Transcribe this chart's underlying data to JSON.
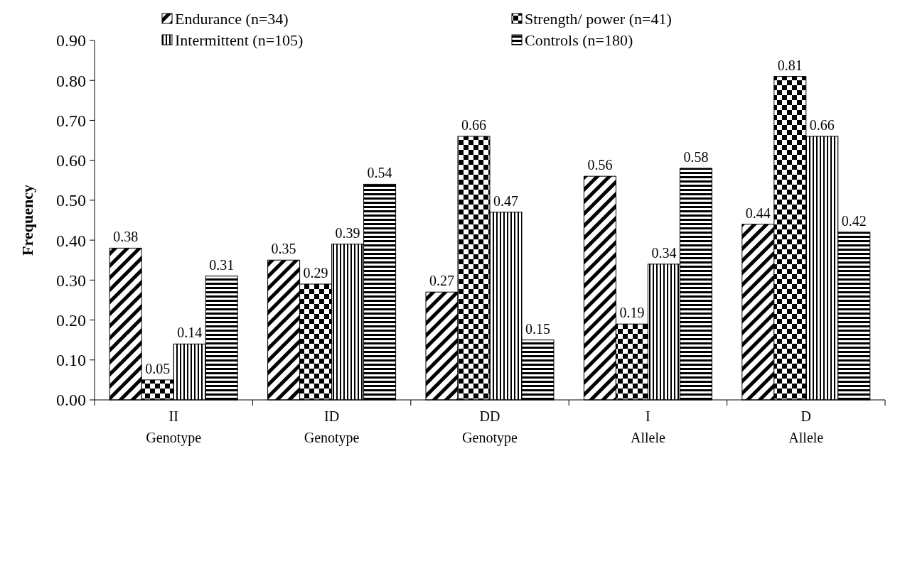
{
  "chart_data": {
    "type": "bar",
    "ylabel": "Frequency",
    "categories": [
      "II\nGenotype",
      "ID\nGenotype",
      "DD\nGenotype",
      "I\nAllele",
      "D\nAllele"
    ],
    "series": [
      {
        "name": "Endurance (n=34)",
        "color": "#000000",
        "values": [
          0.38,
          0.35,
          0.27,
          0.56,
          0.44
        ]
      },
      {
        "name": "Strength/ power (n=41)",
        "color": "#000000",
        "values": [
          0.05,
          0.29,
          0.66,
          0.19,
          0.81
        ]
      },
      {
        "name": "Intermittent (n=105)",
        "color": "#000000",
        "values": [
          0.14,
          0.39,
          0.47,
          0.34,
          0.66
        ]
      },
      {
        "name": "Controls (n=180)",
        "color": "#000000",
        "values": [
          0.31,
          0.54,
          0.15,
          0.58,
          0.42
        ]
      }
    ],
    "ylim": [
      0,
      0.9
    ],
    "yticks": [
      {
        "value": 0,
        "label": "0.00"
      },
      {
        "value": 0.1,
        "label": "0.10"
      },
      {
        "value": 0.2,
        "label": "0.20"
      },
      {
        "value": 0.3,
        "label": "0.30"
      },
      {
        "value": 0.4,
        "label": "0.40"
      },
      {
        "value": 0.5,
        "label": "0.50"
      },
      {
        "value": 0.6,
        "label": "0.60"
      },
      {
        "value": 0.7,
        "label": "0.70"
      },
      {
        "value": 0.8,
        "label": "0.80"
      },
      {
        "value": 0.9,
        "label": "0.90"
      }
    ],
    "data_labels": true,
    "legend": "top",
    "grid": false
  }
}
